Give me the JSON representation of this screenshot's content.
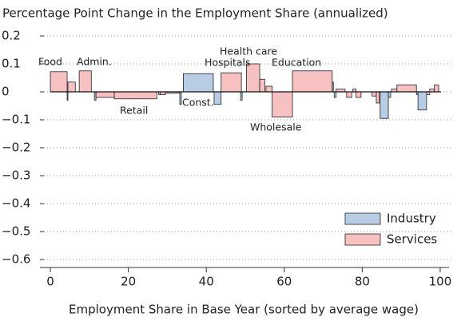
{
  "chart_data": {
    "type": "variable-width-bar",
    "title": "Percentage Point Change in the Employment Share (annualized)",
    "xlabel": "Employment Share in Base Year (sorted by average wage)",
    "xlim": [
      -3,
      103
    ],
    "xticks": [
      0,
      20,
      40,
      60,
      80,
      100
    ],
    "ylim": [
      -0.63,
      0.23
    ],
    "yticks": [
      0.2,
      0.1,
      0,
      {
        "value": -0.1,
        "label": "−0.1"
      },
      {
        "value": -0.2,
        "label": "−0.2"
      },
      {
        "value": -0.3,
        "label": "−0.3"
      },
      {
        "value": -0.4,
        "label": "−0.4"
      },
      {
        "value": -0.5,
        "label": "−0.5"
      },
      {
        "value": -0.6,
        "label": "−0.6"
      }
    ],
    "grid": true,
    "legend": "lower right",
    "annotations": [
      "Food",
      "Admin.",
      "Retail",
      "Const.",
      "Hospitals",
      "Health care",
      "Education",
      "Wholesale"
    ],
    "series": [
      {
        "name": "Industry",
        "color": "#b8cce4",
        "x_start": [
          4.3,
          11.3,
          27.8,
          33.2,
          34.1,
          42.0,
          48.8,
          72.3,
          72.8,
          84.6,
          86.7,
          93.9,
          94.3
        ],
        "x_end": [
          4.5,
          11.7,
          28.2,
          33.6,
          41.8,
          43.8,
          49.2,
          72.6,
          73.3,
          86.7,
          87.3,
          94.3,
          96.5
        ],
        "values": [
          -0.03,
          -0.03,
          -0.01,
          -0.045,
          0.065,
          -0.045,
          -0.03,
          0.035,
          -0.02,
          -0.095,
          -0.02,
          -0.01,
          -0.065
        ]
      },
      {
        "name": "Services",
        "color": "#f6c1c0",
        "x_start": [
          0,
          4.5,
          7.4,
          11.7,
          16.4,
          28.2,
          29.5,
          43.8,
          50.3,
          53.7,
          55.3,
          56.9,
          62.1,
          73.3,
          76.0,
          77.6,
          78.4,
          82.5,
          83.6,
          87.5,
          88.9,
          96.5,
          97.3,
          98.5
        ],
        "x_end": [
          4.3,
          6.4,
          10.5,
          16.4,
          27.3,
          29.5,
          33.0,
          49.0,
          53.7,
          55.0,
          56.9,
          62.1,
          72.3,
          75.6,
          77.3,
          78.4,
          79.7,
          83.6,
          84.4,
          88.9,
          93.9,
          97.3,
          98.5,
          99.6
        ],
        "values": [
          0.072,
          0.035,
          0.075,
          -0.02,
          -0.025,
          -0.01,
          -0.005,
          0.068,
          0.1,
          0.045,
          0.02,
          -0.09,
          0.075,
          0.01,
          -0.02,
          0.01,
          -0.02,
          -0.015,
          -0.04,
          0.01,
          0.025,
          -0.01,
          0.01,
          0.025
        ]
      }
    ]
  }
}
